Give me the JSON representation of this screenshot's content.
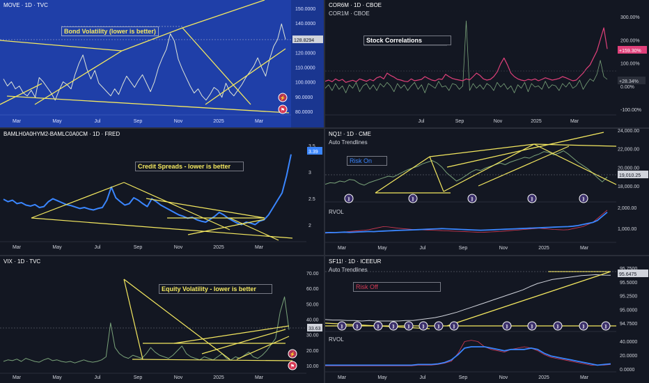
{
  "colors": {
    "bg": "#131722",
    "blue_bg": "#1f3fa8",
    "trend": "#f5e960",
    "grid": "#2a2e39",
    "text": "#d1d4dc",
    "green": "#7aa37a",
    "pink": "#e0407a",
    "blue_line": "#3a86ff",
    "red_line": "#d63a55"
  },
  "icons": [
    "lightning-icon",
    "flag-icon",
    "dividend-icon"
  ],
  "chart_data": [
    {
      "id": "move",
      "type": "line",
      "title": "MOVE · 1D · TVC",
      "annotation": "Bond Volatility (lower is better)",
      "x_ticks": [
        "Mar",
        "May",
        "Jul",
        "Sep",
        "Nov",
        "2025",
        "Mar"
      ],
      "y_ticks": [
        "150.0000",
        "140.0000",
        "130.0000",
        "120.0000",
        "110.0000",
        "100.0000",
        "90.0000",
        "80.0000"
      ],
      "ylim": [
        78,
        152
      ],
      "last_value": "128.8294",
      "values": [
        101,
        96,
        99,
        94,
        96,
        91,
        89,
        93,
        88,
        102,
        99,
        95,
        91,
        86,
        93,
        99,
        97,
        94,
        104,
        112,
        118,
        108,
        101,
        107,
        98,
        95,
        92,
        89,
        94,
        90,
        97,
        103,
        99,
        95,
        100,
        104,
        98,
        92,
        99,
        109,
        116,
        122,
        133,
        128,
        115,
        108,
        102,
        96,
        91,
        94,
        89,
        86,
        90,
        95,
        93,
        88,
        98,
        92,
        89,
        93,
        97,
        102,
        106,
        110,
        116,
        109,
        103,
        115,
        124,
        129,
        140,
        129
      ]
    },
    {
      "id": "cor",
      "type": "line",
      "title": "COR6M · 1D · CBOE",
      "subtitle": "COR1M · CBOE",
      "annotation": "Stock Correlations",
      "x_ticks": [
        "Jul",
        "Sep",
        "Nov",
        "2025",
        "Mar"
      ],
      "y_ticks": [
        "300.00%",
        "200.00%",
        "100.00%",
        "0.00%",
        "-100.00%"
      ],
      "ylim": [
        -110,
        310
      ],
      "badges": [
        "+159.30%",
        "+28.34%"
      ],
      "series": [
        {
          "name": "COR6M",
          "values": [
            20,
            25,
            18,
            30,
            22,
            28,
            15,
            20,
            24,
            18,
            30,
            25,
            20,
            28,
            22,
            35,
            40,
            30,
            55,
            45,
            38,
            28,
            25,
            20,
            18,
            30,
            22,
            25,
            28,
            40,
            32,
            25,
            22,
            30,
            28,
            50,
            40,
            32,
            28,
            25,
            22,
            30,
            26,
            40,
            55,
            45,
            30,
            25,
            28,
            40,
            60,
            95,
            120,
            90,
            55,
            40,
            30,
            25,
            22,
            28,
            25,
            30,
            22,
            28,
            35,
            30,
            25,
            28,
            32,
            40,
            35,
            28,
            22,
            25,
            40,
            55,
            75,
            90,
            120,
            150,
            200,
            250,
            159
          ]
        },
        {
          "name": "COR1M",
          "values": [
            -10,
            5,
            -20,
            10,
            -15,
            0,
            -30,
            5,
            -10,
            15,
            -25,
            0,
            10,
            -15,
            5,
            -20,
            10,
            -5,
            15,
            0,
            -25,
            10,
            -10,
            5,
            -20,
            0,
            15,
            -15,
            5,
            -30,
            10,
            0,
            -10,
            20,
            -5,
            0,
            -20,
            10,
            5,
            -15,
            0,
            280,
            -20,
            10,
            -10,
            5,
            -15,
            10,
            0,
            -20,
            15,
            -5,
            10,
            -15,
            0,
            -30,
            5,
            -10,
            15,
            -25,
            10,
            -5,
            0,
            -15,
            20,
            -10,
            5,
            0,
            -20,
            10,
            -5,
            15,
            -10,
            0,
            25,
            -15,
            10,
            30,
            20,
            50,
            110,
            40,
            28
          ]
        }
      ]
    },
    {
      "id": "hy",
      "type": "line",
      "title": "BAMLH0A0HYM2-BAMLC0A0CM · 1D · FRED",
      "annotation": "Credit Spreads - lower is better",
      "x_ticks": [
        "Mar",
        "May",
        "Jul",
        "Sep",
        "Nov",
        "2025",
        "Mar"
      ],
      "y_ticks": [
        "3.5",
        "3",
        "2.5",
        "2"
      ],
      "ylim": [
        1.6,
        3.6
      ],
      "last_value": "3.39",
      "values": [
        2.47,
        2.42,
        2.45,
        2.38,
        2.4,
        2.35,
        2.33,
        2.36,
        2.3,
        2.32,
        2.42,
        2.48,
        2.44,
        2.4,
        2.36,
        2.34,
        2.31,
        2.28,
        2.3,
        2.27,
        2.25,
        2.28,
        2.3,
        2.45,
        2.72,
        2.5,
        2.42,
        2.35,
        2.38,
        2.5,
        2.45,
        2.38,
        2.32,
        2.48,
        2.42,
        2.35,
        2.3,
        2.25,
        2.2,
        2.15,
        2.12,
        2.08,
        2.1,
        2.05,
        2.02,
        2.0,
        2.06,
        2.12,
        2.2,
        2.15,
        2.08,
        2.03,
        1.98,
        1.95,
        2.0,
        1.98,
        1.95,
        2.02,
        2.05,
        2.15,
        2.3,
        2.45,
        2.6,
        2.95,
        3.39
      ]
    },
    {
      "id": "nq",
      "type": "line",
      "title": "NQ1! · 1D · CME",
      "subtitle": "Auto Trendlines",
      "annotation": "Risk On",
      "x_ticks": [
        "Mar",
        "May",
        "Jul",
        "Sep",
        "Nov",
        "2025",
        "Mar"
      ],
      "y_ticks": [
        "24,000.00",
        "22,000.00",
        "20,000.00",
        "18,000.00"
      ],
      "ylim": [
        16800,
        24200
      ],
      "last_value": "19,010.25",
      "values": [
        18100,
        18300,
        18250,
        18500,
        18400,
        18700,
        18600,
        18200,
        18000,
        18300,
        18500,
        18700,
        18900,
        19100,
        19000,
        19300,
        19600,
        19900,
        20100,
        20300,
        20600,
        20800,
        21000,
        20700,
        20200,
        19500,
        19000,
        18500,
        18800,
        19200,
        19600,
        19900,
        19800,
        20100,
        20300,
        20500,
        20700,
        20500,
        20800,
        21000,
        21200,
        21400,
        21300,
        21600,
        21800,
        22100,
        22000,
        21700,
        21900,
        22200,
        21800,
        21300,
        20800,
        20400,
        20000,
        19500,
        18900,
        18400,
        19010
      ]
    },
    {
      "id": "nq-rvol",
      "type": "line",
      "title": "RVOL",
      "y_ticks": [
        "2,000.00",
        "1,000.00"
      ],
      "ylim": [
        600,
        2300
      ],
      "series": [
        {
          "name": "RVOL",
          "values": [
            900,
            910,
            905,
            920,
            930,
            915,
            925,
            940,
            950,
            960,
            955,
            970,
            980,
            990,
            1000,
            1010,
            1020,
            1030,
            1040,
            1050,
            1060,
            1070,
            1080,
            1090,
            1100,
            1090,
            1080,
            1070,
            1060,
            1050,
            1040,
            1030,
            1020,
            1030,
            1040,
            1050,
            1060,
            1070,
            1080,
            1090,
            1100,
            1110,
            1120,
            1130,
            1140,
            1150,
            1160,
            1170,
            1180,
            1190,
            1200,
            1220,
            1250,
            1300,
            1350,
            1400,
            1500,
            1700,
            1900
          ]
        },
        {
          "name": "",
          "values": [
            880,
            890,
            900,
            920,
            940,
            960,
            980,
            1000,
            1020,
            1050,
            1100,
            1150,
            1200,
            1180,
            1150,
            1120,
            1100,
            1080,
            1060,
            1050,
            1040,
            1030,
            1020,
            1010,
            1000,
            990,
            980,
            970,
            960,
            950,
            940,
            930,
            920,
            930,
            940,
            950,
            960,
            980,
            1000,
            1020,
            1040,
            1060,
            1080,
            1100,
            1120,
            1100,
            1080,
            1060,
            1050,
            1040,
            1050,
            1100,
            1150,
            1200,
            1300,
            1400,
            1600,
            1800,
            2000
          ]
        }
      ]
    },
    {
      "id": "vix",
      "type": "line",
      "title": "VIX · 1D · TVC",
      "annotation": "Equity Volatility - lower is better",
      "x_ticks": [
        "Mar",
        "May",
        "Jul",
        "Sep",
        "Nov",
        "2025",
        "Mar"
      ],
      "y_ticks": [
        "70.00",
        "60.00",
        "50.00",
        "40.00",
        "30.00",
        "20.00",
        "10.00"
      ],
      "ylim": [
        8,
        76
      ],
      "last_value": "33.63",
      "values": [
        13,
        14,
        13.5,
        14.5,
        13,
        15,
        14,
        13,
        12.5,
        14,
        15,
        13.5,
        14,
        13,
        12.5,
        13,
        12,
        13,
        14,
        13,
        12.5,
        13,
        14,
        16,
        38,
        22,
        18,
        16,
        15,
        17,
        16,
        15,
        18,
        22,
        19,
        17,
        16,
        15,
        17,
        20,
        23,
        18,
        16,
        15,
        14,
        16,
        15,
        14,
        16,
        18,
        15,
        14,
        16,
        15,
        17,
        19,
        16,
        15,
        17,
        20,
        24,
        28,
        45,
        55,
        33.63
      ]
    },
    {
      "id": "sf",
      "type": "line",
      "title": "SF11! · 1D · ICEEUR",
      "subtitle": "Auto Trendlines",
      "annotation": "Risk Off",
      "x_ticks": [
        "Mar",
        "May",
        "Jul",
        "Sep",
        "Nov",
        "2025",
        "Mar"
      ],
      "y_ticks": [
        "95.7500",
        "95.5000",
        "95.2500",
        "95.0000",
        "94.7500"
      ],
      "ylim": [
        94.65,
        95.82
      ],
      "last_value": "95.6475",
      "values": [
        94.75,
        94.74,
        94.74,
        94.73,
        94.73,
        94.72,
        94.73,
        94.72,
        94.72,
        94.72,
        94.72,
        94.73,
        94.73,
        94.75,
        94.77,
        94.79,
        94.82,
        94.86,
        94.9,
        94.95,
        95.0,
        95.05,
        95.1,
        95.15,
        95.2,
        95.25,
        95.3,
        95.35,
        95.42,
        95.48,
        95.52,
        95.56,
        95.58,
        95.6,
        95.62,
        95.64,
        95.65,
        95.66,
        95.65,
        95.6475
      ]
    },
    {
      "id": "sf-rvol",
      "type": "line",
      "title": "RVOL",
      "y_ticks": [
        "40.0000",
        "20.0000",
        "0.0000"
      ],
      "ylim": [
        -4,
        46
      ],
      "series": [
        {
          "name": "RVOL",
          "values": [
            2,
            2,
            2,
            2,
            2,
            2,
            2,
            2,
            2,
            2,
            2,
            2,
            2,
            2,
            3,
            3,
            3,
            4,
            6,
            10,
            18,
            28,
            30,
            30,
            30,
            28,
            26,
            24,
            26,
            26,
            26,
            28,
            26,
            20,
            16,
            14,
            12,
            10,
            8,
            6,
            4,
            2,
            3,
            4
          ]
        },
        {
          "name": "",
          "values": [
            1,
            1,
            1,
            1,
            1,
            1,
            1,
            1,
            1,
            1,
            1,
            1,
            1,
            1,
            2,
            2,
            2,
            3,
            5,
            8,
            20,
            38,
            40,
            38,
            30,
            26,
            24,
            22,
            26,
            28,
            30,
            28,
            24,
            18,
            14,
            12,
            10,
            8,
            6,
            4,
            2,
            2,
            2,
            3
          ]
        }
      ]
    }
  ]
}
